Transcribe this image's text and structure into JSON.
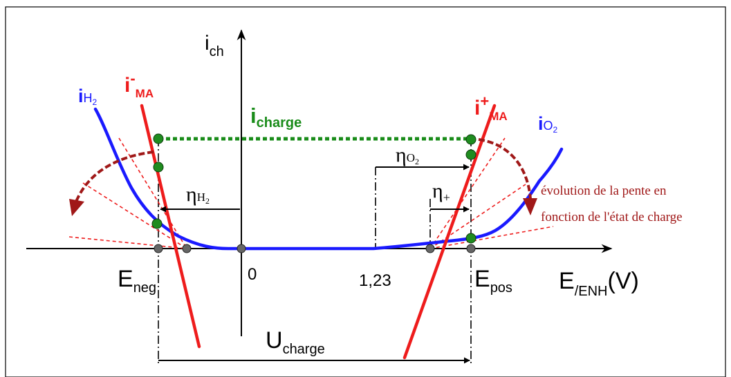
{
  "axes": {
    "y_label_main": "i",
    "y_label_sub": "ch",
    "x_label_main": "E",
    "x_label_sub": "/ENH",
    "x_label_unit": "(V)",
    "tick_zero": "0",
    "tick_123": "1,23"
  },
  "labels": {
    "i_h2_main": "i",
    "i_h2_sub": "H",
    "i_h2_sub2": "2",
    "i_ma_minus_main": "i",
    "i_ma_minus_sup": "-",
    "i_ma_minus_sub": "MA",
    "i_charge_main": "i",
    "i_charge_sub": "charge",
    "i_ma_plus_main": "i",
    "i_ma_plus_sup": "+",
    "i_ma_plus_sub": "MA",
    "i_o2_main": "i",
    "i_o2_sub": "O",
    "i_o2_sub2": "2",
    "eta_h2_main": "η",
    "eta_h2_sub": "H",
    "eta_h2_sub2": "2",
    "eta_o2_main": "η",
    "eta_o2_sub": "O",
    "eta_o2_sub2": "2",
    "eta_plus_main": "η",
    "eta_plus_sub": "+",
    "e_neg_main": "E",
    "e_neg_sub": "neg",
    "e_pos_main": "E",
    "e_pos_sub": "pos",
    "u_charge_main": "U",
    "u_charge_sub": "charge",
    "annotation_line1": "évolution de la pente en",
    "annotation_line2": "fonction de l'état de charge"
  },
  "colors": {
    "blue": "#1a1aff",
    "red": "#ee1c1c",
    "green": "#1a8c1a",
    "dark_red": "#a01818"
  }
}
